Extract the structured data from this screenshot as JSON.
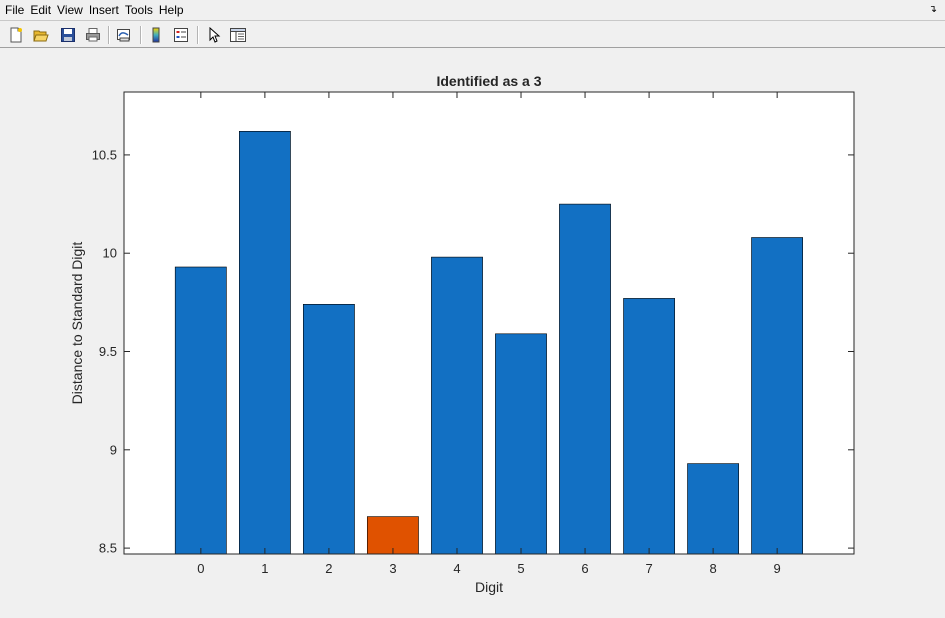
{
  "menu": {
    "items": [
      "File",
      "Edit",
      "View",
      "Insert",
      "Tools",
      "Help"
    ]
  },
  "toolbar": {
    "buttons": [
      {
        "icon": "new-figure-icon"
      },
      {
        "icon": "open-file-icon"
      },
      {
        "icon": "save-icon"
      },
      {
        "icon": "print-icon"
      },
      {
        "icon": "link-plot-icon"
      },
      {
        "icon": "colorbar-icon"
      },
      {
        "icon": "legend-icon"
      },
      {
        "icon": "edit-plot-pointer-icon"
      },
      {
        "icon": "property-inspector-icon"
      }
    ]
  },
  "colors": {
    "bar_default": "#1270c3",
    "bar_highlight": "#e05200",
    "axes_bg": "#ffffff",
    "figure_bg": "#f0f0f0"
  },
  "chart_data": {
    "type": "bar",
    "title": "Identified as a 3",
    "xlabel": "Digit",
    "ylabel": "Distance to Standard Digit",
    "categories": [
      "0",
      "1",
      "2",
      "3",
      "4",
      "5",
      "6",
      "7",
      "8",
      "9"
    ],
    "values": [
      9.93,
      10.62,
      9.74,
      8.66,
      9.98,
      9.59,
      10.25,
      9.77,
      8.93,
      10.08
    ],
    "highlight_index": 3,
    "ylim": [
      8.47,
      10.82
    ],
    "xlim": [
      -1.2,
      10.2
    ],
    "yticks": [
      8.5,
      9,
      9.5,
      10,
      10.5
    ],
    "ytick_labels": [
      "8.5",
      "9",
      "9.5",
      "10",
      "10.5"
    ],
    "grid": false,
    "legend": "none"
  }
}
